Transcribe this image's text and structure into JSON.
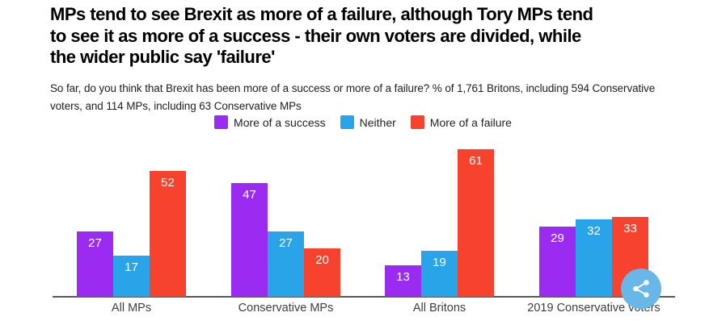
{
  "header": {
    "title_lines": [
      "MPs tend to see Brexit as more of a failure, although Tory MPs tend",
      "to see it as more of a success - their own voters are divided, while",
      "the wider public say 'failure'"
    ],
    "subtitle_lines": [
      "So far, do you think that Brexit has been more of a success or more of a failure? % of 1,761 Britons, including 594 Conservative",
      "voters, and 114 MPs, including 63 Conservative MPs"
    ]
  },
  "chart_data": {
    "type": "bar",
    "categories": [
      "All MPs",
      "Conservative MPs",
      "All Britons",
      "2019 Conservative voters"
    ],
    "series": [
      {
        "name": "More of a success",
        "color": "#9B2BF0",
        "values": [
          27,
          47,
          13,
          29
        ]
      },
      {
        "name": "Neither",
        "color": "#29A4E9",
        "values": [
          17,
          27,
          19,
          32
        ]
      },
      {
        "name": "More of a failure",
        "color": "#F7422E",
        "values": [
          52,
          20,
          61,
          33
        ]
      }
    ],
    "ylim": [
      0,
      65
    ],
    "grid": false,
    "legend_position": "top-center",
    "value_labels": "inside-top, white"
  },
  "share_button": {
    "icon": "share-icon",
    "color": "#68B7E8"
  },
  "colors": {
    "background": "#ffffff",
    "title": "#000000",
    "subtitle": "#1e1e1e",
    "axis": "#585858",
    "category_label": "#3d3d3d"
  }
}
